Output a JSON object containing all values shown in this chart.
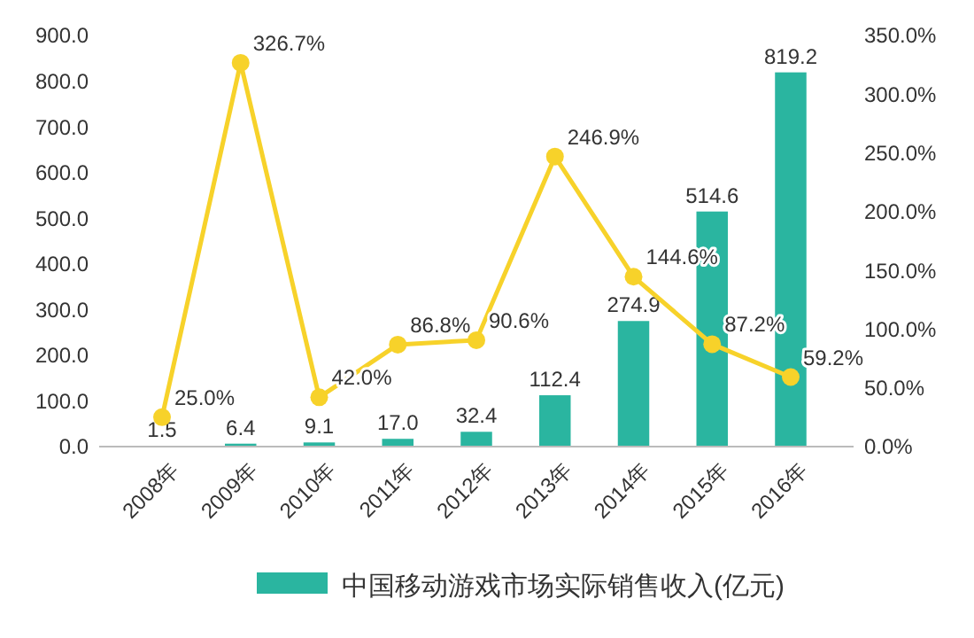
{
  "chart_data": {
    "type": "bar",
    "categories": [
      "2008年",
      "2009年",
      "2010年",
      "2011年",
      "2012年",
      "2013年",
      "2014年",
      "2015年",
      "2016年"
    ],
    "series": [
      {
        "name": "中国移动游戏市场实际销售收入(亿元)",
        "color": "#2ab5a0",
        "values": [
          1.5,
          6.4,
          9.1,
          17.0,
          32.4,
          112.4,
          274.9,
          514.6,
          819.2
        ],
        "value_labels": [
          "1.5",
          "6.4",
          "9.1",
          "17.0",
          "32.4",
          "112.4",
          "274.9",
          "514.6",
          "819.2"
        ]
      },
      {
        "type": "line",
        "axis": "y2",
        "color": "#f7d22a",
        "values": [
          25.0,
          326.7,
          42.0,
          86.8,
          90.6,
          246.9,
          144.6,
          87.2,
          59.2
        ],
        "value_labels": [
          "25.0%",
          "326.7%",
          "42.0%",
          "86.8%",
          "90.6%",
          "246.9%",
          "144.6%",
          "87.2%",
          "59.2%"
        ]
      }
    ],
    "ylim": [
      0,
      900
    ],
    "yticks": [
      {
        "value": 0,
        "label": "0.0"
      },
      {
        "value": 100,
        "label": "100.0"
      },
      {
        "value": 200,
        "label": "200.0"
      },
      {
        "value": 300,
        "label": "300.0"
      },
      {
        "value": 400,
        "label": "400.0"
      },
      {
        "value": 500,
        "label": "500.0"
      },
      {
        "value": 600,
        "label": "600.0"
      },
      {
        "value": 700,
        "label": "700.0"
      },
      {
        "value": 800,
        "label": "800.0"
      },
      {
        "value": 900,
        "label": "900.0"
      }
    ],
    "y2lim": [
      0,
      350
    ],
    "y2ticks": [
      {
        "value": 0,
        "label": "0.0%"
      },
      {
        "value": 50,
        "label": "50.0%"
      },
      {
        "value": 100,
        "label": "100.0%"
      },
      {
        "value": 150,
        "label": "150.0%"
      },
      {
        "value": 200,
        "label": "200.0%"
      },
      {
        "value": 250,
        "label": "250.0%"
      },
      {
        "value": 300,
        "label": "300.0%"
      },
      {
        "value": 350,
        "label": "350.0%"
      }
    ],
    "marker": "circle",
    "legend": "bottom",
    "grid": false
  }
}
